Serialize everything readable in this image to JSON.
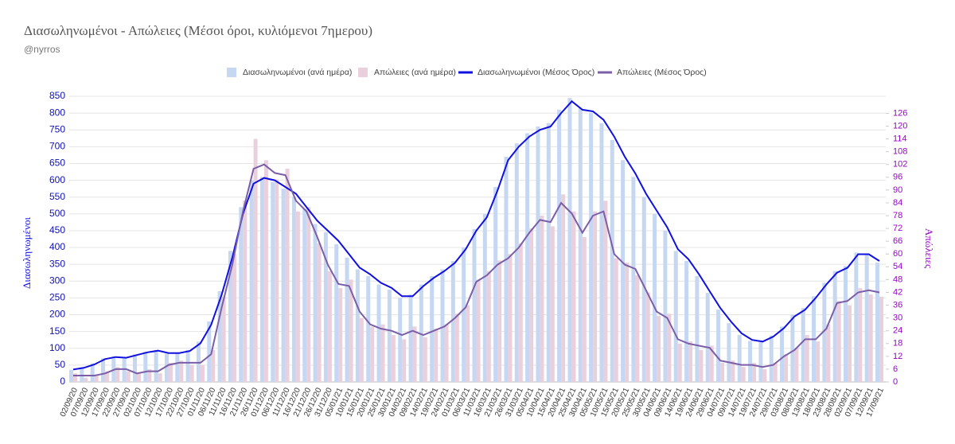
{
  "chart_data": {
    "type": "combo",
    "title": "Διασωληνωμένοι - Απώλειες (Μέσοι όροι, κυλιόμενοι 7ημερου)",
    "subtitle": "@nyrros",
    "y_label": "Διασωληνωμένοι",
    "y2_label": "Απώλειες",
    "categories": [
      "02/09/20",
      "07/09/20",
      "12/09/20",
      "17/09/20",
      "22/09/20",
      "27/09/20",
      "02/10/20",
      "07/10/20",
      "12/10/20",
      "17/10/20",
      "22/10/20",
      "27/10/20",
      "01/11/20",
      "06/11/20",
      "11/11/20",
      "16/11/20",
      "21/11/20",
      "26/11/20",
      "01/12/20",
      "06/12/20",
      "11/12/20",
      "16/12/20",
      "21/12/20",
      "26/12/20",
      "31/12/20",
      "05/01/21",
      "10/01/21",
      "15/01/21",
      "20/01/21",
      "25/01/21",
      "30/01/21",
      "04/02/21",
      "09/02/21",
      "14/02/21",
      "19/02/21",
      "24/02/21",
      "01/03/21",
      "06/03/21",
      "11/03/21",
      "16/03/21",
      "21/03/21",
      "26/03/21",
      "31/03/21",
      "05/04/21",
      "10/04/21",
      "15/04/21",
      "20/04/21",
      "25/04/21",
      "30/04/21",
      "05/05/21",
      "10/05/21",
      "15/05/21",
      "20/05/21",
      "25/05/21",
      "30/05/21",
      "04/06/21",
      "09/06/21",
      "14/06/21",
      "19/06/21",
      "24/06/21",
      "29/06/21",
      "04/07/21",
      "09/07/21",
      "14/07/21",
      "19/07/21",
      "24/07/21",
      "29/07/21",
      "03/08/21",
      "08/08/21",
      "13/08/21",
      "18/08/21",
      "23/08/21",
      "28/08/21",
      "02/09/21",
      "07/09/21",
      "12/09/21",
      "17/09/21"
    ],
    "series": [
      {
        "name": "Διασωληνωμένοι (ανά ημέρα)",
        "type": "bar",
        "color": "#c6d7f2",
        "values": [
          36,
          44,
          55,
          70,
          76,
          70,
          82,
          90,
          95,
          84,
          88,
          95,
          120,
          180,
          270,
          390,
          520,
          600,
          610,
          595,
          575,
          550,
          515,
          470,
          445,
          410,
          370,
          335,
          315,
          290,
          275,
          250,
          260,
          290,
          315,
          335,
          360,
          400,
          455,
          500,
          580,
          670,
          710,
          740,
          760,
          770,
          810,
          845,
          815,
          800,
          770,
          720,
          660,
          610,
          550,
          500,
          450,
          390,
          360,
          315,
          265,
          215,
          175,
          140,
          122,
          118,
          138,
          165,
          200,
          220,
          255,
          295,
          330,
          345,
          385,
          378,
          355
        ]
      },
      {
        "name": "Απώλειες (ανά ημέρα)",
        "type": "bar",
        "axis": "y2",
        "color": "#ead0dc",
        "values": [
          4,
          2,
          3,
          5,
          7,
          5,
          4,
          6,
          4,
          9,
          10,
          8,
          8,
          15,
          40,
          60,
          85,
          114,
          104,
          95,
          100,
          80,
          82,
          65,
          52,
          44,
          48,
          30,
          26,
          27,
          22,
          20,
          26,
          21,
          25,
          27,
          32,
          36,
          48,
          52,
          57,
          60,
          65,
          72,
          78,
          73,
          88,
          80,
          68,
          80,
          85,
          58,
          56,
          50,
          42,
          31,
          32,
          18,
          19,
          15,
          17,
          9,
          10,
          7,
          9,
          6,
          9,
          13,
          16,
          22,
          19,
          27,
          38,
          36,
          44,
          41,
          40
        ]
      },
      {
        "name": "Διασωληνωμένοι (Μέσος Όρος)",
        "type": "line",
        "color": "#1010e0",
        "values": [
          37,
          42,
          52,
          68,
          74,
          72,
          80,
          88,
          93,
          86,
          86,
          92,
          115,
          170,
          260,
          370,
          500,
          590,
          607,
          600,
          580,
          560,
          520,
          480,
          450,
          420,
          380,
          340,
          320,
          295,
          280,
          255,
          255,
          285,
          310,
          330,
          355,
          395,
          450,
          490,
          570,
          660,
          700,
          730,
          750,
          760,
          800,
          835,
          810,
          805,
          780,
          730,
          670,
          620,
          560,
          510,
          460,
          395,
          365,
          320,
          270,
          220,
          180,
          145,
          125,
          120,
          135,
          160,
          195,
          215,
          250,
          290,
          325,
          340,
          380,
          380,
          360
        ]
      },
      {
        "name": "Απώλειες (Μέσος Όρος)",
        "type": "line",
        "axis": "y2",
        "color": "#7b5ea7",
        "values": [
          3,
          3,
          3,
          4,
          6,
          6,
          4,
          5,
          5,
          8,
          9,
          9,
          9,
          13,
          35,
          55,
          80,
          100,
          102,
          98,
          97,
          85,
          80,
          68,
          55,
          46,
          45,
          33,
          27,
          25,
          24,
          22,
          24,
          22,
          24,
          26,
          30,
          35,
          47,
          50,
          55,
          58,
          63,
          70,
          76,
          75,
          84,
          79,
          70,
          78,
          80,
          60,
          55,
          53,
          43,
          33,
          30,
          20,
          18,
          17,
          16,
          10,
          9,
          8,
          8,
          7,
          8,
          12,
          15,
          20,
          20,
          25,
          37,
          38,
          42,
          43,
          42
        ]
      }
    ],
    "ylim": [
      0,
      850
    ],
    "yticks": [
      0,
      50,
      100,
      150,
      200,
      250,
      300,
      350,
      400,
      450,
      500,
      550,
      600,
      650,
      700,
      750,
      800,
      850
    ],
    "y2lim": [
      0,
      134
    ],
    "y2ticks": [
      0,
      6,
      12,
      18,
      24,
      30,
      36,
      42,
      48,
      54,
      60,
      66,
      72,
      78,
      84,
      90,
      96,
      102,
      108,
      114,
      120,
      126
    ],
    "grid": true
  }
}
